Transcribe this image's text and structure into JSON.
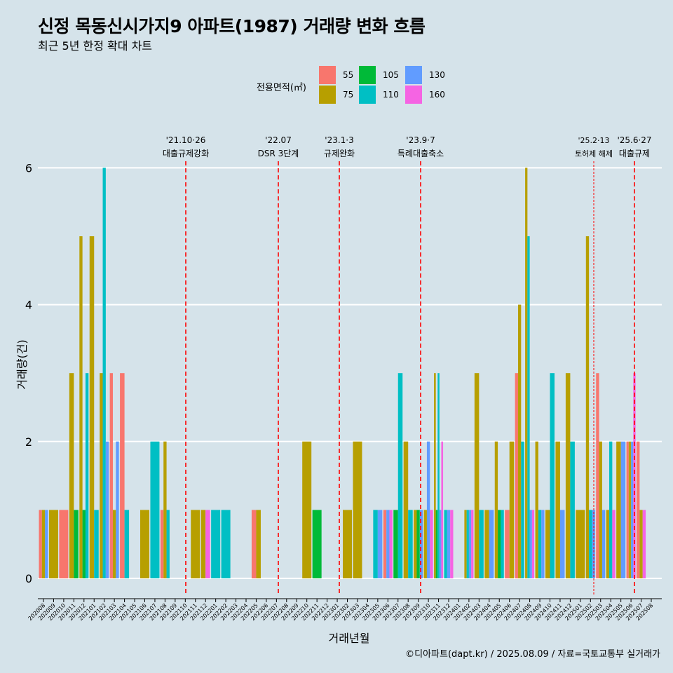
{
  "title": "신정 목동신시가지9 아파트(1987) 거래량 변화 흐름",
  "subtitle": "최근 5년 한정 확대 차트",
  "caption": "©디아파트(dapt.kr) / 2025.08.09 / 자료=국토교통부 실거래가",
  "colors": {
    "background": "#d5e3ea",
    "grid": "#ffffff",
    "vline": "#ff0000"
  },
  "legend": {
    "title": "전용면적(㎡)",
    "items": [
      {
        "label": "55",
        "color": "#f8766d"
      },
      {
        "label": "75",
        "color": "#b79f00"
      },
      {
        "label": "105",
        "color": "#00ba38"
      },
      {
        "label": "110",
        "color": "#00bfc4"
      },
      {
        "label": "130",
        "color": "#619cff"
      },
      {
        "label": "160",
        "color": "#f564e3"
      }
    ]
  },
  "chart_data": {
    "type": "bar",
    "xlabel": "거래년월",
    "ylabel": "거래량(건)",
    "ylim": [
      0,
      6.4
    ],
    "yticks": [
      0,
      2,
      4,
      6
    ],
    "categories": [
      "202008",
      "202009",
      "202010",
      "202011",
      "202012",
      "202101",
      "202102",
      "202103",
      "202104",
      "202105",
      "202106",
      "202107",
      "202108",
      "202109",
      "202110",
      "202111",
      "202112",
      "202201",
      "202202",
      "202203",
      "202204",
      "202205",
      "202206",
      "202207",
      "202208",
      "202209",
      "202210",
      "202211",
      "202212",
      "202301",
      "202302",
      "202303",
      "202304",
      "202305",
      "202306",
      "202307",
      "202308",
      "202309",
      "202310",
      "202311",
      "202312",
      "202401",
      "202402",
      "202403",
      "202404",
      "202405",
      "202406",
      "202407",
      "202408",
      "202409",
      "202410",
      "202411",
      "202412",
      "202501",
      "202502",
      "202503",
      "202504",
      "202505",
      "202506",
      "202507",
      "202508"
    ],
    "series": [
      {
        "name": "55",
        "values": [
          1,
          0,
          1,
          0,
          0,
          0,
          0,
          3,
          3,
          0,
          0,
          0,
          1,
          0,
          0,
          0,
          0,
          0,
          0,
          0,
          0,
          1,
          0,
          0,
          0,
          0,
          0,
          0,
          0,
          0,
          0,
          0,
          0,
          0,
          1,
          0,
          0,
          0,
          0,
          0,
          0,
          0,
          0,
          0,
          0,
          0,
          1,
          3,
          0,
          0,
          0,
          0,
          0,
          0,
          0,
          3,
          0,
          0,
          2,
          2,
          0
        ]
      },
      {
        "name": "75",
        "values": [
          1,
          1,
          0,
          3,
          5,
          5,
          3,
          1,
          0,
          0,
          1,
          0,
          2,
          0,
          0,
          1,
          1,
          0,
          0,
          0,
          0,
          1,
          0,
          0,
          0,
          0,
          2,
          0,
          0,
          0,
          1,
          2,
          0,
          0,
          0,
          0,
          2,
          1,
          1,
          3,
          0,
          0,
          1,
          3,
          1,
          2,
          2,
          4,
          6,
          2,
          1,
          2,
          3,
          1,
          5,
          2,
          1,
          2,
          2,
          1,
          0
        ]
      },
      {
        "name": "105",
        "values": [
          0,
          0,
          0,
          1,
          1,
          0,
          0,
          0,
          0,
          0,
          0,
          0,
          0,
          0,
          0,
          0,
          0,
          0,
          0,
          0,
          0,
          0,
          0,
          0,
          0,
          0,
          0,
          1,
          0,
          0,
          0,
          0,
          0,
          0,
          0,
          1,
          0,
          1,
          0,
          1,
          0,
          0,
          0,
          0,
          0,
          1,
          0,
          0,
          0,
          0,
          0,
          0,
          0,
          0,
          0,
          0,
          0,
          0,
          0,
          0,
          0
        ]
      },
      {
        "name": "110",
        "values": [
          0,
          0,
          0,
          0,
          3,
          1,
          6,
          0,
          1,
          0,
          0,
          2,
          1,
          0,
          0,
          0,
          0,
          1,
          1,
          0,
          0,
          0,
          0,
          0,
          0,
          0,
          0,
          0,
          0,
          0,
          0,
          0,
          0,
          1,
          0,
          3,
          1,
          0,
          0,
          3,
          1,
          0,
          1,
          1,
          0,
          1,
          0,
          2,
          5,
          1,
          3,
          0,
          2,
          0,
          1,
          0,
          2,
          0,
          0,
          0,
          0
        ]
      },
      {
        "name": "130",
        "values": [
          1,
          0,
          0,
          0,
          0,
          0,
          2,
          2,
          0,
          0,
          0,
          0,
          0,
          0,
          0,
          0,
          0,
          0,
          0,
          0,
          0,
          0,
          0,
          0,
          0,
          0,
          0,
          0,
          0,
          0,
          0,
          0,
          0,
          1,
          1,
          0,
          0,
          1,
          2,
          1,
          1,
          0,
          1,
          0,
          1,
          0,
          0,
          0,
          1,
          1,
          0,
          1,
          0,
          0,
          1,
          1,
          0,
          2,
          2,
          0,
          0
        ]
      },
      {
        "name": "160",
        "values": [
          0,
          0,
          0,
          0,
          0,
          0,
          0,
          0,
          0,
          0,
          0,
          0,
          0,
          0,
          0,
          0,
          1,
          0,
          0,
          0,
          0,
          0,
          0,
          0,
          0,
          0,
          0,
          0,
          0,
          0,
          0,
          0,
          0,
          0,
          1,
          0,
          0,
          0,
          1,
          2,
          1,
          0,
          1,
          0,
          0,
          0,
          0,
          0,
          1,
          0,
          0,
          0,
          0,
          0,
          0,
          0,
          1,
          0,
          3,
          1,
          0
        ]
      }
    ],
    "annotations": [
      {
        "line1": "'21.10·26",
        "line2": "대출규제강화",
        "x_month": "202110",
        "dashed": true
      },
      {
        "line1": "'22.07",
        "line2": "DSR 3단계",
        "x_month": "202207",
        "dashed": true
      },
      {
        "line1": "'23.1·3",
        "line2": "규제완화",
        "x_month": "202301",
        "dashed": true
      },
      {
        "line1": "'23.9·7",
        "line2": "특례대출축소",
        "x_month": "202309",
        "dashed": true
      },
      {
        "line1": "'25.2·13",
        "line2": "토허제 해제",
        "x_month": "202502",
        "dashed": false
      },
      {
        "line1": "'25.6·27",
        "line2": "대출규제",
        "x_month": "202506",
        "dashed": true
      }
    ]
  }
}
